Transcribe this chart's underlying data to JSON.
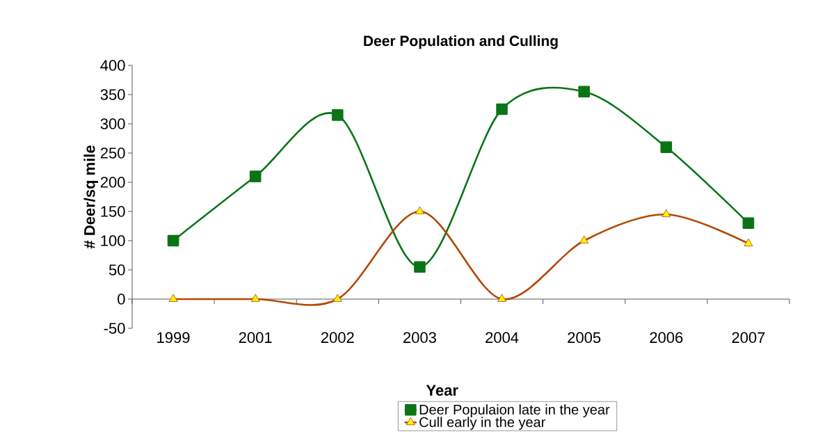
{
  "chart_data": {
    "type": "line",
    "title": "Deer Population and Culling",
    "xlabel": "Year",
    "ylabel": "# Deer/sq mile",
    "categories": [
      "1999",
      "2001",
      "2002",
      "2003",
      "2004",
      "2005",
      "2006",
      "2007"
    ],
    "series": [
      {
        "name": "Deer Populaion late in the year",
        "color": "#0a7416",
        "marker": "square",
        "values": [
          100,
          210,
          315,
          55,
          325,
          355,
          260,
          130
        ]
      },
      {
        "name": "Cull early in the year",
        "color": "#b34700",
        "marker": "triangle",
        "values": [
          0,
          0,
          0,
          150,
          0,
          100,
          145,
          95
        ]
      }
    ],
    "ylim": [
      -50,
      400
    ],
    "yticks": [
      -50,
      0,
      50,
      100,
      150,
      200,
      250,
      300,
      350,
      400
    ],
    "grid": false,
    "legend": "bottom",
    "line_style": "solid"
  }
}
